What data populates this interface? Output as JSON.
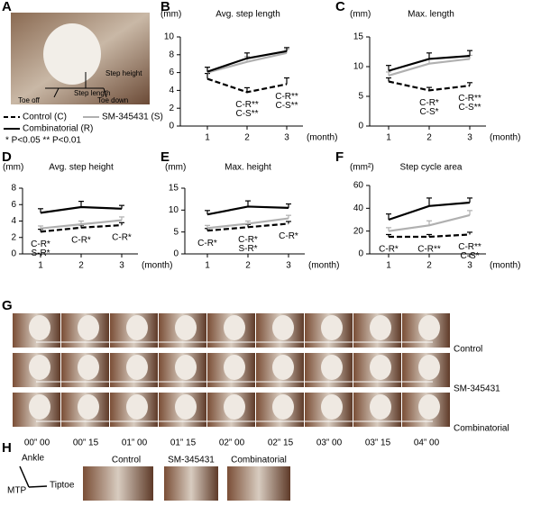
{
  "panel_letters": [
    "A",
    "B",
    "C",
    "D",
    "E",
    "F",
    "G",
    "H"
  ],
  "panel_a": {
    "labels": [
      "Step height",
      "Step length",
      "Toe off",
      "Toe down"
    ]
  },
  "legend_note": "* P<0.05 ** P<0.01",
  "chart_data": [
    {
      "type": "line",
      "title": "Avg. step length",
      "y_label": "(mm)",
      "x_label": "(month)",
      "categories": [
        "1",
        "2",
        "3"
      ],
      "ylim": [
        0,
        10
      ],
      "yticks": [
        0,
        2,
        4,
        6,
        8,
        10
      ],
      "series": [
        {
          "name": "Control (C)",
          "color": "#000000",
          "dash": true,
          "values": [
            5.3,
            3.8,
            4.7
          ],
          "errors": [
            0.6,
            0.5,
            0.7
          ]
        },
        {
          "name": "SM-345431 (S)",
          "color": "#b0b0b0",
          "dash": false,
          "values": [
            6.0,
            7.2,
            8.2
          ],
          "errors": [
            0.6,
            0.6,
            0.4
          ]
        },
        {
          "name": "Combinatorial (R)",
          "color": "#000000",
          "dash": false,
          "values": [
            6.1,
            7.6,
            8.4
          ],
          "errors": [
            0.5,
            0.6,
            0.4
          ]
        }
      ],
      "annotations": [
        [],
        [
          "C-R**",
          "C-S**"
        ],
        [
          "C-R**",
          "C-S**"
        ]
      ]
    },
    {
      "type": "line",
      "title": "Max. length",
      "y_label": "(mm)",
      "x_label": "(month)",
      "categories": [
        "1",
        "2",
        "3"
      ],
      "ylim": [
        0,
        15
      ],
      "yticks": [
        0,
        5,
        10,
        15
      ],
      "series": [
        {
          "color": "#000000",
          "dash": true,
          "values": [
            7.5,
            6.0,
            6.8
          ],
          "errors": [
            0.6,
            0.5,
            0.5
          ]
        },
        {
          "color": "#b0b0b0",
          "dash": false,
          "values": [
            8.5,
            10.5,
            11.3
          ],
          "errors": [
            0.6,
            0.8,
            0.6
          ]
        },
        {
          "color": "#000000",
          "dash": false,
          "values": [
            9.3,
            11.3,
            11.8
          ],
          "errors": [
            0.9,
            1.0,
            0.9
          ]
        }
      ],
      "annotations": [
        [],
        [
          "C-R*",
          "C-S*"
        ],
        [
          "C-R**",
          "C-S**"
        ]
      ]
    },
    {
      "type": "line",
      "title": "Avg. step height",
      "y_label": "(mm)",
      "x_label": "(month)",
      "categories": [
        "1",
        "2",
        "3"
      ],
      "ylim": [
        0,
        8
      ],
      "yticks": [
        0,
        2,
        4,
        6,
        8
      ],
      "series": [
        {
          "color": "#000000",
          "dash": true,
          "values": [
            2.7,
            3.2,
            3.5
          ],
          "errors": [
            0.3,
            0.3,
            0.3
          ]
        },
        {
          "color": "#b0b0b0",
          "dash": false,
          "values": [
            3.1,
            3.6,
            4.1
          ],
          "errors": [
            0.3,
            0.4,
            0.4
          ]
        },
        {
          "color": "#000000",
          "dash": false,
          "values": [
            5.0,
            5.7,
            5.5
          ],
          "errors": [
            0.5,
            0.7,
            0.4
          ]
        }
      ],
      "annotations": [
        [
          "C-R*",
          "S-R*"
        ],
        [
          "C-R*"
        ],
        [
          "C-R*"
        ]
      ]
    },
    {
      "type": "line",
      "title": "Max. height",
      "y_label": "(mm)",
      "x_label": "(month)",
      "categories": [
        "1",
        "2",
        "3"
      ],
      "ylim": [
        0,
        15
      ],
      "yticks": [
        0,
        5,
        10,
        15
      ],
      "series": [
        {
          "color": "#000000",
          "dash": true,
          "values": [
            5.3,
            6.1,
            6.9
          ],
          "errors": [
            0.5,
            0.6,
            0.5
          ]
        },
        {
          "color": "#b0b0b0",
          "dash": false,
          "values": [
            5.9,
            6.9,
            8.1
          ],
          "errors": [
            0.6,
            0.6,
            0.7
          ]
        },
        {
          "color": "#000000",
          "dash": false,
          "values": [
            9.0,
            10.8,
            10.5
          ],
          "errors": [
            0.9,
            1.3,
            0.9
          ]
        }
      ],
      "annotations": [
        [
          "C-R*"
        ],
        [
          "C-R*",
          "S-R*"
        ],
        [
          "C-R*"
        ]
      ]
    },
    {
      "type": "line",
      "title": "Step cycle area",
      "y_label": "(mm²)",
      "x_label": "(month)",
      "categories": [
        "1",
        "2",
        "3"
      ],
      "ylim": [
        0,
        60
      ],
      "yticks": [
        0,
        20,
        40,
        60
      ],
      "series": [
        {
          "color": "#000000",
          "dash": true,
          "values": [
            15,
            15,
            17
          ],
          "errors": [
            2,
            2,
            2
          ]
        },
        {
          "color": "#b0b0b0",
          "dash": false,
          "values": [
            20,
            25,
            34
          ],
          "errors": [
            3,
            4,
            4
          ]
        },
        {
          "color": "#000000",
          "dash": false,
          "values": [
            30,
            42,
            45
          ],
          "errors": [
            5,
            7,
            4
          ]
        }
      ],
      "annotations": [
        [
          "C-R*"
        ],
        [
          "C-R**"
        ],
        [
          "C-R**",
          "C-S*"
        ]
      ]
    }
  ],
  "panel_g": {
    "rows": [
      "Control",
      "SM-345431",
      "Combinatorial"
    ],
    "times": [
      "00” 00",
      "00” 15",
      "01” 00",
      "01” 15",
      "02” 00",
      "02” 15",
      "03” 00",
      "03” 15",
      "04” 00"
    ]
  },
  "panel_h": {
    "joints": [
      "Ankle",
      "MTP",
      "Tiptoe"
    ],
    "groups": [
      "Control",
      "SM-345431",
      "Combinatorial"
    ]
  }
}
